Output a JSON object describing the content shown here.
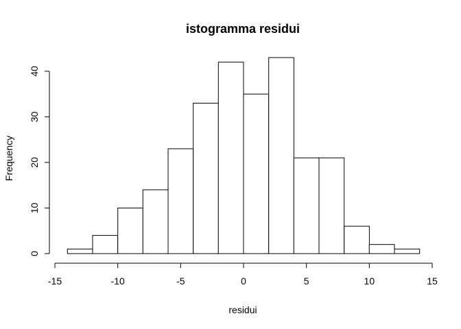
{
  "chart_data": {
    "type": "bar",
    "title": "istogramma residui",
    "xlabel": "residui",
    "ylabel": "Frequency",
    "bin_edges": [
      -14,
      -12,
      -10,
      -8,
      -6,
      -4,
      -2,
      0,
      2,
      4,
      6,
      8,
      10,
      12,
      14
    ],
    "values": [
      1,
      4,
      10,
      14,
      23,
      33,
      42,
      35,
      43,
      21,
      21,
      6,
      2,
      1
    ],
    "xlim": [
      -15,
      15
    ],
    "ylim": [
      0,
      43
    ],
    "x_ticks": [
      -15,
      -10,
      -5,
      0,
      5,
      10,
      15
    ],
    "y_ticks": [
      0,
      10,
      20,
      30,
      40
    ],
    "grid": false,
    "legend": "none"
  }
}
